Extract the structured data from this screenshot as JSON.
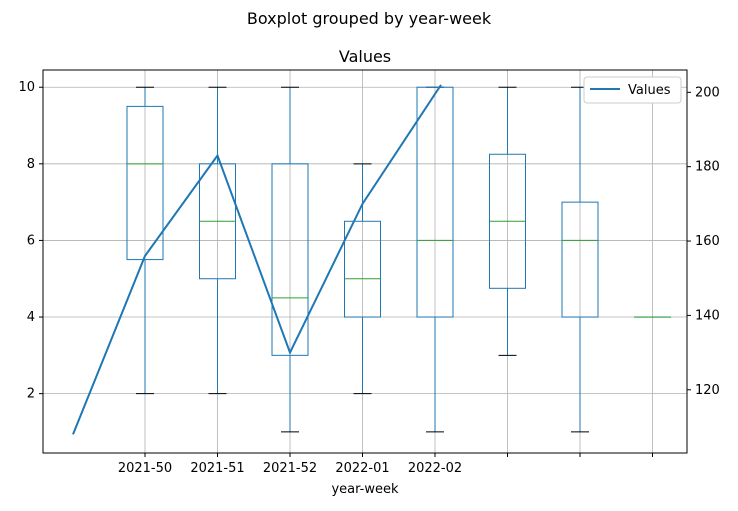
{
  "suptitle": "Boxplot grouped by year-week",
  "chart_data": {
    "type": "box",
    "title": "Values",
    "xlabel": "year-week",
    "ylabel": "",
    "ylim": [
      0.45,
      10.45
    ],
    "y_ticks": [
      2,
      4,
      6,
      8,
      10
    ],
    "grid": true,
    "categories": [
      "2021-50",
      "2021-51",
      "2021-52",
      "2022-01",
      "2022-02",
      "",
      "",
      ""
    ],
    "boxes": [
      {
        "whislo": 2,
        "q1": 5.5,
        "med": 8,
        "q3": 9.5,
        "whishi": 10
      },
      {
        "whislo": 2,
        "q1": 5,
        "med": 6.5,
        "q3": 8,
        "whishi": 10
      },
      {
        "whislo": 1,
        "q1": 3,
        "med": 4.5,
        "q3": 8,
        "whishi": 10
      },
      {
        "whislo": 2,
        "q1": 4,
        "med": 5,
        "q3": 6.5,
        "whishi": 8
      },
      {
        "whislo": 1,
        "q1": 4,
        "med": 6,
        "q3": 10,
        "whishi": 10
      },
      {
        "whislo": 3,
        "q1": 4.75,
        "med": 6.5,
        "q3": 8.25,
        "whishi": 10
      },
      {
        "whislo": 1,
        "q1": 4,
        "med": 6,
        "q3": 7,
        "whishi": 10
      },
      {
        "whislo": 4,
        "q1": 4,
        "med": 4,
        "q3": 4,
        "whishi": 4
      }
    ],
    "secondary_axis": {
      "ylim": [
        103,
        206
      ],
      "y_ticks": [
        120,
        140,
        160,
        180,
        200
      ]
    },
    "series": [
      {
        "name": "Values",
        "x_positions": [
          0,
          1,
          2,
          3,
          4,
          5
        ],
        "values": [
          108,
          156,
          183,
          130,
          170,
          202
        ]
      }
    ],
    "legend": "upper-right",
    "colors": {
      "box": "#1f77b4",
      "median": "#2ca02c",
      "line": "#1f77b4",
      "whisker_cap": "#000000",
      "grid": "#b0b0b0"
    }
  }
}
